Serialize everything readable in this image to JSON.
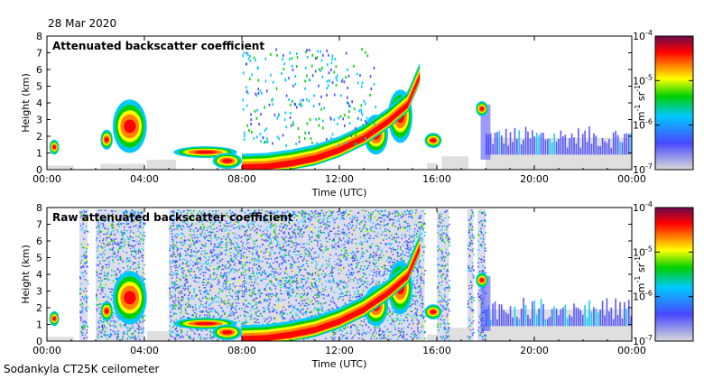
{
  "date_label": "28 Mar 2020",
  "footer_label": "Sodankyla CT25K ceilometer",
  "chart_data": [
    {
      "type": "heatmap",
      "title": "Attenuated backscatter coefficient",
      "xlabel": "Time (UTC)",
      "ylabel": "Height (km)",
      "x_ticks": [
        "00:00",
        "04:00",
        "08:00",
        "12:00",
        "16:00",
        "20:00",
        "00:00"
      ],
      "y_ticks": [
        "0",
        "1",
        "2",
        "3",
        "4",
        "5",
        "6",
        "7",
        "8"
      ],
      "ylim": [
        0,
        8
      ],
      "colorbar": {
        "scale": "log",
        "ticks": [
          "10^-7",
          "10^-6",
          "10^-5",
          "10^-4"
        ],
        "label": "m^-1 sr^-1",
        "colors": [
          "#d9d9d9",
          "#4848ff",
          "#00c8ff",
          "#00d000",
          "#ffff00",
          "#ff8000",
          "#ff0000",
          "#6a0a4a"
        ]
      },
      "cloud_top_km": [
        {
          "time": "01:05",
          "height": 1.5
        },
        {
          "time": "02:30",
          "height": 2.2
        },
        {
          "time": "03:00",
          "height": 3.2
        },
        {
          "time": "03:30",
          "height": 3.6
        },
        {
          "time": "04:00",
          "height": 4.0
        },
        {
          "time": "06:00",
          "height": 1.2
        },
        {
          "time": "08:00",
          "height": 0.5
        },
        {
          "time": "10:00",
          "height": 0.8
        },
        {
          "time": "12:00",
          "height": 1.8
        },
        {
          "time": "13:00",
          "height": 2.3
        },
        {
          "time": "14:00",
          "height": 3.3
        },
        {
          "time": "15:00",
          "height": 5.2
        },
        {
          "time": "16:00",
          "height": 1.8
        },
        {
          "time": "17:45",
          "height": 3.9
        },
        {
          "time": "18:30",
          "height": 2.2
        },
        {
          "time": "23:59",
          "height": 2.4
        }
      ]
    },
    {
      "type": "heatmap",
      "title": "Raw attenuated backscatter coefficient",
      "xlabel": "Time (UTC)",
      "ylabel": "Height (km)",
      "x_ticks": [
        "00:00",
        "04:00",
        "08:00",
        "12:00",
        "16:00",
        "20:00",
        "00:00"
      ],
      "y_ticks": [
        "0",
        "1",
        "2",
        "3",
        "4",
        "5",
        "6",
        "7",
        "8"
      ],
      "ylim": [
        0,
        8
      ],
      "colorbar": {
        "scale": "log",
        "ticks": [
          "10^-7",
          "10^-6",
          "10^-5",
          "10^-4"
        ],
        "label": "m^-1 sr^-1",
        "colors": [
          "#d9d9d9",
          "#4848ff",
          "#00c8ff",
          "#00d000",
          "#ffff00",
          "#ff8000",
          "#ff0000",
          "#6a0a4a"
        ]
      },
      "noise_regions": [
        {
          "start": "01:20",
          "end": "01:40"
        },
        {
          "start": "02:00",
          "end": "04:00"
        },
        {
          "start": "05:00",
          "end": "15:30"
        },
        {
          "start": "16:00",
          "end": "16:30"
        },
        {
          "start": "17:15",
          "end": "17:30"
        },
        {
          "start": "17:40",
          "end": "18:00"
        }
      ]
    }
  ]
}
